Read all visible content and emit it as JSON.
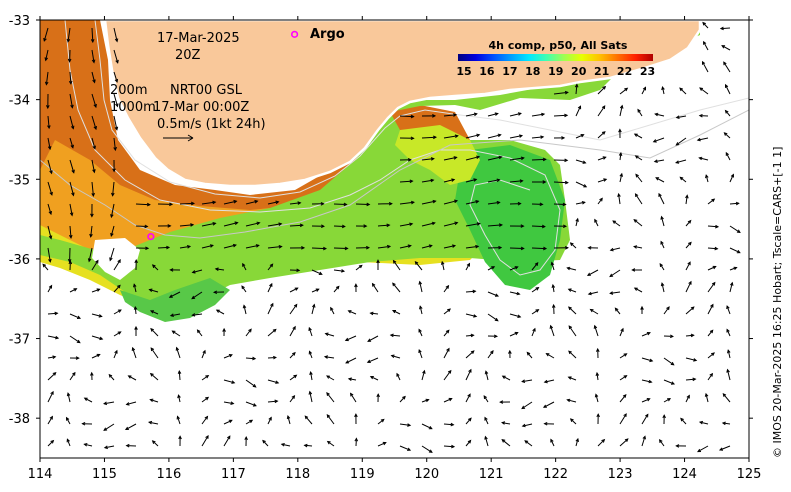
{
  "map": {
    "date": "17-Mar-2025",
    "time": "20Z",
    "depth_contours": [
      "200m",
      "1000m"
    ],
    "altimetry_product": "NRT00 GSL",
    "altimetry_time": "17-Mar 00:00Z",
    "vector_scale": "0.5m/s (1kt 24h)",
    "argo_label": "Argo",
    "credit": "© IMOS 20-Mar-2025 16:25 Hobart; Tscale=CARS+[-1 1]",
    "colorbar": {
      "title": "4h comp, p50, All Sats",
      "ticks": [
        "15",
        "16",
        "17",
        "18",
        "19",
        "20",
        "21",
        "22",
        "23"
      ],
      "min": 15,
      "max": 23.5,
      "colors": [
        "#000080",
        "#0000e0",
        "#0050ff",
        "#00a0ff",
        "#00e8ff",
        "#40ffb0",
        "#a0ff50",
        "#e8ff00",
        "#ffc000",
        "#ff7000",
        "#ff2000",
        "#b00000"
      ]
    },
    "lon_ticks": [
      "114",
      "115",
      "116",
      "117",
      "118",
      "119",
      "120",
      "121",
      "122",
      "123",
      "124",
      "125"
    ],
    "lat_ticks": [
      "-33",
      "-34",
      "-35",
      "-36",
      "-37",
      "-38"
    ],
    "argo_floats": [
      {
        "lon": 117.95,
        "lat": -33.18
      },
      {
        "lon": 115.72,
        "lat": -35.72
      }
    ],
    "land_color": "#f9c89a",
    "argo_color": "#ff00ff"
  }
}
